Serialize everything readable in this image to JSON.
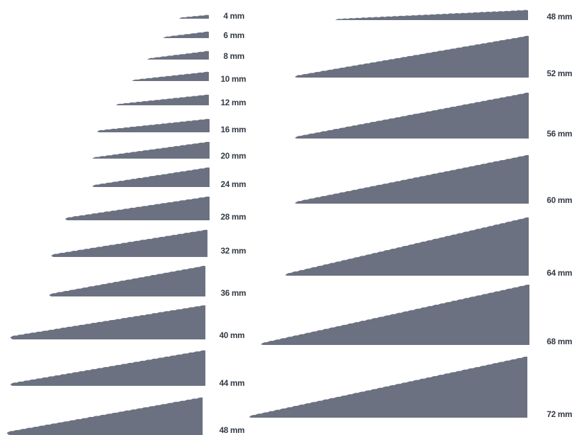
{
  "shape_color": "#6b7180",
  "label_color": "#333a45",
  "left_column": {
    "sizes": [
      {
        "label": "4 mm"
      },
      {
        "label": "6 mm"
      },
      {
        "label": "8 mm"
      },
      {
        "label": "10 mm"
      },
      {
        "label": "12 mm"
      },
      {
        "label": "16 mm"
      },
      {
        "label": "20 mm"
      },
      {
        "label": "24 mm"
      },
      {
        "label": "28 mm"
      },
      {
        "label": "32 mm"
      },
      {
        "label": "36 mm"
      },
      {
        "label": "40 mm"
      },
      {
        "label": "44 mm"
      },
      {
        "label": "48 mm"
      }
    ]
  },
  "right_column": {
    "sizes": [
      {
        "label": "48 mm"
      },
      {
        "label": "52 mm"
      },
      {
        "label": "56 mm"
      },
      {
        "label": "60 mm"
      },
      {
        "label": "64 mm"
      },
      {
        "label": "68 mm"
      },
      {
        "label": "72 mm"
      }
    ]
  }
}
